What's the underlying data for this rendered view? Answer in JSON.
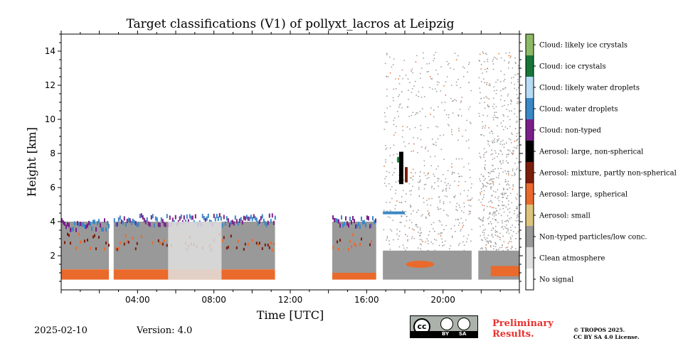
{
  "chart_data": {
    "type": "heatmap",
    "title": "Target classifications (V1) of pollyxt_lacros at Leipzig",
    "xlabel": "Time [UTC]",
    "ylabel": "Height [km]",
    "xlim": [
      "00:00",
      "24:00"
    ],
    "ylim": [
      0,
      15
    ],
    "x_ticks": [
      "04:00",
      "08:00",
      "12:00",
      "16:00",
      "20:00"
    ],
    "y_ticks": [
      2,
      4,
      6,
      8,
      10,
      12,
      14
    ],
    "legend": {
      "placement": "right colorbar",
      "classes": [
        {
          "label": "Cloud: likely ice crystals",
          "color": "#8cb966"
        },
        {
          "label": "Cloud: ice crystals",
          "color": "#17753a"
        },
        {
          "label": "Cloud: likely water droplets",
          "color": "#b6dcf5"
        },
        {
          "label": "Cloud: water droplets",
          "color": "#3a88c6"
        },
        {
          "label": "Cloud: non-typed",
          "color": "#7a1f8a"
        },
        {
          "label": "Aerosol: large, non-spherical",
          "color": "#000000"
        },
        {
          "label": "Aerosol: mixture, partly non-spherical",
          "color": "#7b1d0b"
        },
        {
          "label": "Aerosol: large, spherical",
          "color": "#ea6a2c"
        },
        {
          "label": "Aerosol: small",
          "color": "#dcc47a"
        },
        {
          "label": "Non-typed particles/low conc.",
          "color": "#999999"
        },
        {
          "label": "Clean atmosphere",
          "color": "#e0e0e0"
        },
        {
          "label": "No signal",
          "color": "#ffffff"
        }
      ]
    },
    "data_segments": [
      {
        "start_h": 0.0,
        "end_h": 2.5,
        "min_km": 0.6,
        "top_km": 4.2
      },
      {
        "start_h": 2.75,
        "end_h": 11.2,
        "min_km": 0.6,
        "top_km": 4.5
      },
      {
        "start_h": 14.2,
        "end_h": 16.5,
        "min_km": 0.6,
        "top_km": 4.4
      },
      {
        "start_h": 16.85,
        "end_h": 21.5,
        "min_km": 0.6,
        "top_km": 14.0
      },
      {
        "start_h": 21.85,
        "end_h": 24.0,
        "min_km": 0.6,
        "top_km": 14.0
      }
    ]
  },
  "footer": {
    "date": "2025-02-10",
    "version": "Version: 4.0",
    "preliminary": "Preliminary Results.",
    "copyright_line1": "© TROPOS 2025.",
    "copyright_line2": "CC BY SA 4.0 License.",
    "cc_logo_text": "cc",
    "cc_by_text": "BY",
    "cc_sa_text": "SA"
  }
}
